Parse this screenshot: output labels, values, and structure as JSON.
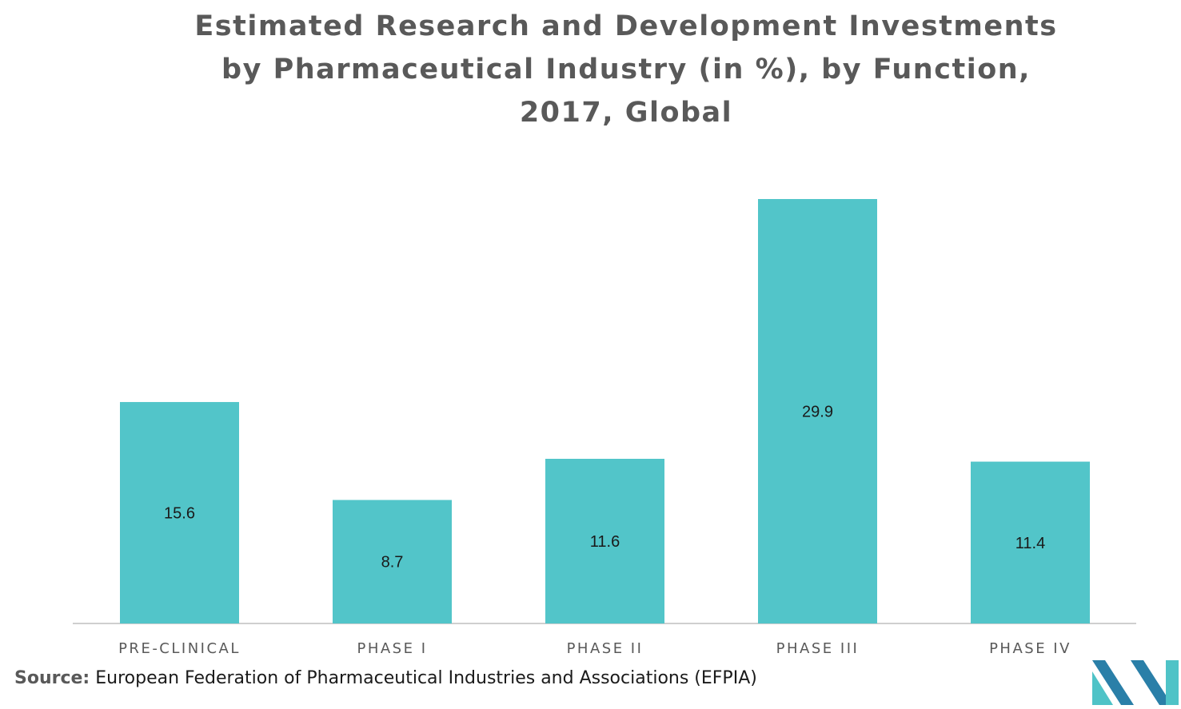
{
  "chart_data": {
    "type": "bar",
    "title": "Estimated Research and Development Investments\nby Pharmaceutical Industry (in %), by Function,\n2017, Global",
    "categories": [
      "PRE-CLINICAL",
      "PHASE I",
      "PHASE II",
      "PHASE III",
      "PHASE IV"
    ],
    "values": [
      15.6,
      8.7,
      11.6,
      29.9,
      11.4
    ],
    "value_labels": [
      "15.6",
      "8.7",
      "11.6",
      "29.9",
      "11.4"
    ],
    "xlabel": "",
    "ylabel": "",
    "ylim": [
      0,
      30
    ],
    "grid": false,
    "legend": "none",
    "bar_color": "#52c5c9"
  },
  "source": {
    "label": "Source:",
    "text": "European Federation of Pharmaceutical Industries and Associations (EFPIA)"
  },
  "colors": {
    "title": "#595959",
    "axis": "#bfbfbf",
    "logo_dark": "#2a7fa8",
    "logo_light": "#4fc3c7"
  },
  "logo": {
    "icon": "company-logo-icon"
  }
}
